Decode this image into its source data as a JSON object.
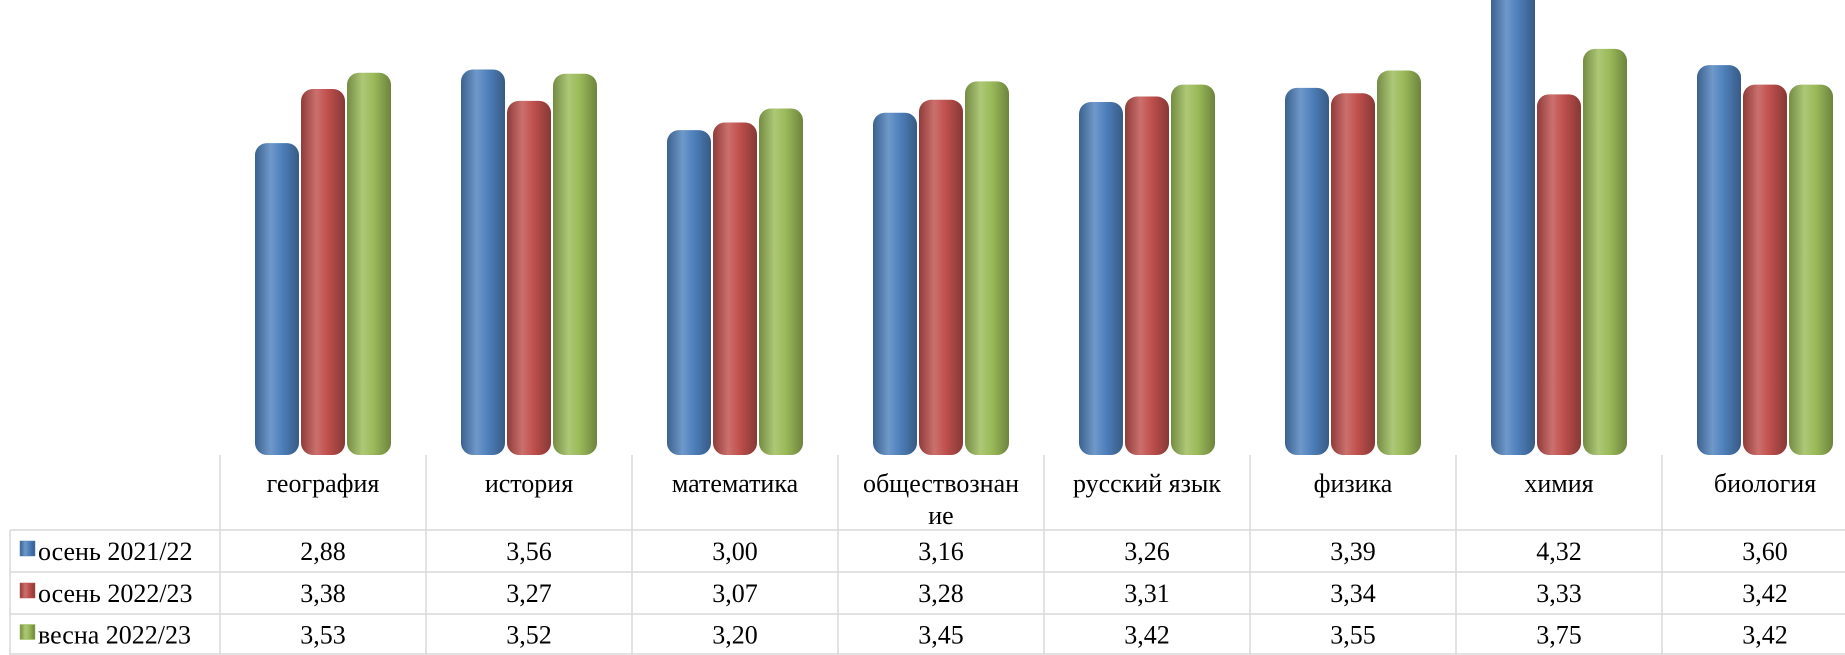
{
  "chart_data": {
    "type": "bar",
    "title": "",
    "xlabel": "",
    "ylabel": "",
    "ylim": [
      0,
      4.4
    ],
    "grid": false,
    "legend": "data-table",
    "categories": [
      "география",
      "история",
      "математика",
      "обществознание",
      "русский язык",
      "физика",
      "химия",
      "биология"
    ],
    "category_lines": [
      [
        "география"
      ],
      [
        "история"
      ],
      [
        "математика"
      ],
      [
        "обществознан",
        "ие"
      ],
      [
        "русский язык"
      ],
      [
        "физика"
      ],
      [
        "химия"
      ],
      [
        "биология"
      ]
    ],
    "series": [
      {
        "name": "осень 2021/22",
        "color": "#4f81bd",
        "values": [
          2.88,
          3.56,
          3.0,
          3.16,
          3.26,
          3.39,
          4.32,
          3.6
        ],
        "labels": [
          "2,88",
          "3,56",
          "3,00",
          "3,16",
          "3,26",
          "3,39",
          "4,32",
          "3,60"
        ]
      },
      {
        "name": "осень 2022/23",
        "color": "#c0504d",
        "values": [
          3.38,
          3.27,
          3.07,
          3.28,
          3.31,
          3.34,
          3.33,
          3.42
        ],
        "labels": [
          "3,38",
          "3,27",
          "3,07",
          "3,28",
          "3,31",
          "3,34",
          "3,33",
          "3,42"
        ]
      },
      {
        "name": "весна 2022/23",
        "color": "#9bbb59",
        "values": [
          3.53,
          3.52,
          3.2,
          3.45,
          3.42,
          3.55,
          3.75,
          3.42
        ],
        "labels": [
          "3,53",
          "3,52",
          "3,20",
          "3,45",
          "3,42",
          "3,55",
          "3,75",
          "3,42"
        ]
      }
    ]
  }
}
